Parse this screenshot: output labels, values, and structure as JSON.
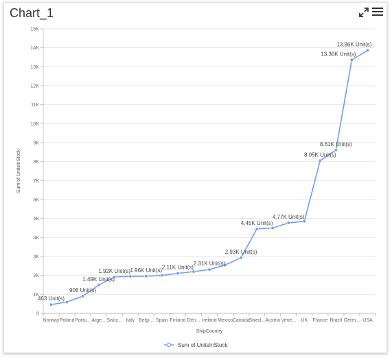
{
  "header": {
    "title": "Chart_1",
    "expand_icon": "expand-icon",
    "menu_icon": "hamburger-menu-icon"
  },
  "chart_data": {
    "type": "line",
    "xlabel": "ShipCountry",
    "ylabel": "Sum of UnitsInStock",
    "ylim": [
      0,
      15000
    ],
    "y_ticks": [
      "0",
      "1K",
      "2K",
      "3K",
      "4K",
      "5K",
      "6K",
      "7K",
      "8K",
      "9K",
      "10K",
      "11K",
      "12K",
      "13K",
      "14K",
      "15K"
    ],
    "grid": true,
    "legend_placement": "bottom",
    "color": "#6e9cf2",
    "categories": [
      "Norway",
      "Poland",
      "Portu...",
      "Arge...",
      "Switz...",
      "Italy",
      "Belgi...",
      "Spain",
      "Finland",
      "Den...",
      "Ireland",
      "Mexico",
      "Canada",
      "Swed...",
      "Austria",
      "Vene...",
      "UK",
      "France",
      "Brazil",
      "Germ...",
      "USA"
    ],
    "series": [
      {
        "name": "Sum of UnitsInStock",
        "values": [
          463,
          600,
          906,
          1490,
          1920,
          1950,
          1960,
          2000,
          2110,
          2200,
          2310,
          2550,
          2930,
          4450,
          4500,
          4770,
          4850,
          8050,
          8610,
          13360,
          13860
        ]
      }
    ],
    "data_labels": [
      {
        "index": 0,
        "text": "463 Unit(s)"
      },
      {
        "index": 2,
        "text": "906 Unit(s)"
      },
      {
        "index": 3,
        "text": "1.49K Unit(s)"
      },
      {
        "index": 4,
        "text": "1.92K Unit(s)"
      },
      {
        "index": 6,
        "text": "1.96K Unit(s)"
      },
      {
        "index": 8,
        "text": "2.11K Unit(s)"
      },
      {
        "index": 10,
        "text": "2.31K Unit(s)"
      },
      {
        "index": 12,
        "text": "2.93K Unit(s)"
      },
      {
        "index": 13,
        "text": "4.45K Unit(s)"
      },
      {
        "index": 15,
        "text": "4.77K Unit(s)"
      },
      {
        "index": 17,
        "text": "8.05K Unit(s)"
      },
      {
        "index": 18,
        "text": "8.61K Unit(s)"
      },
      {
        "index": 19,
        "text": "13.36K Unit(s)"
      },
      {
        "index": 20,
        "text": "13.86K Unit(s)"
      }
    ]
  }
}
